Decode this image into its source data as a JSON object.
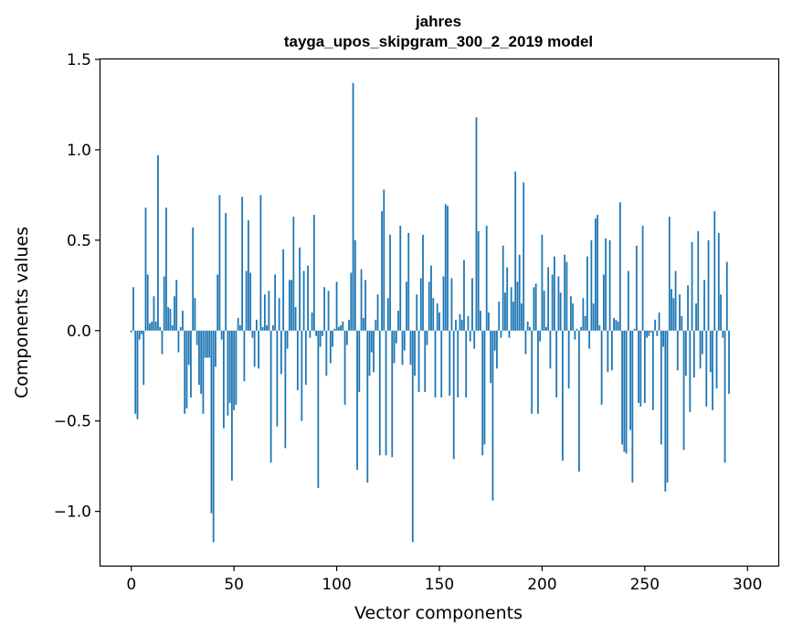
{
  "chart_data": {
    "type": "bar",
    "title": "jahres",
    "subtitle": "tayga_upos_skipgram_300_2_2019 model",
    "xlabel": "Vector components",
    "ylabel": "Components values",
    "xlim": [
      -15,
      315
    ],
    "ylim": [
      -1.3,
      1.5
    ],
    "xticks": [
      0,
      50,
      100,
      150,
      200,
      250,
      300
    ],
    "xtick_labels": [
      "0",
      "50",
      "100",
      "150",
      "200",
      "250",
      "300"
    ],
    "yticks": [
      -1.0,
      -0.5,
      0.0,
      0.5,
      1.0,
      1.5
    ],
    "ytick_labels": [
      "−1.0",
      "−0.5",
      "0.0",
      "0.5",
      "1.0",
      "1.5"
    ],
    "bar_color": "#1f77b4",
    "values": [
      -0.01,
      0.24,
      -0.46,
      -0.49,
      -0.05,
      -0.02,
      -0.3,
      0.68,
      0.31,
      0.04,
      0.05,
      0.19,
      0.05,
      0.97,
      0.02,
      -0.13,
      0.3,
      0.68,
      0.13,
      0.12,
      0.03,
      0.19,
      0.28,
      -0.12,
      0.02,
      0.11,
      -0.46,
      -0.43,
      -0.19,
      -0.37,
      0.57,
      0.18,
      -0.08,
      -0.3,
      -0.35,
      -0.46,
      -0.15,
      -0.15,
      -0.15,
      -1.01,
      -1.17,
      -0.2,
      0.31,
      0.75,
      -0.05,
      -0.54,
      0.65,
      -0.47,
      -0.4,
      -0.83,
      -0.44,
      -0.41,
      0.07,
      0.03,
      0.74,
      -0.28,
      0.33,
      0.61,
      0.32,
      -0.04,
      -0.2,
      0.06,
      -0.21,
      0.75,
      0.02,
      0.2,
      0.03,
      0.22,
      -0.73,
      0.03,
      0.31,
      -0.53,
      0.18,
      -0.24,
      0.45,
      -0.65,
      -0.1,
      0.28,
      0.28,
      0.63,
      0.13,
      -0.33,
      0.46,
      -0.5,
      0.33,
      -0.3,
      0.36,
      -0.04,
      0.1,
      0.64,
      -0.03,
      -0.87,
      -0.09,
      -0.03,
      0.24,
      -0.25,
      0.22,
      -0.18,
      -0.09,
      0.01,
      0.27,
      0.02,
      0.03,
      0.05,
      -0.41,
      -0.08,
      0.06,
      0.32,
      1.37,
      0.5,
      -0.77,
      -0.34,
      0.34,
      0.07,
      0.28,
      -0.84,
      -0.25,
      -0.12,
      -0.23,
      0.06,
      0.2,
      -0.69,
      0.66,
      0.78,
      -0.69,
      0.18,
      0.53,
      -0.7,
      -0.18,
      -0.07,
      0.11,
      0.58,
      -0.19,
      -0.11,
      0.27,
      0.54,
      -0.19,
      -1.17,
      -0.25,
      0.2,
      -0.34,
      0.29,
      0.53,
      -0.34,
      -0.08,
      0.27,
      0.36,
      0.18,
      -0.37,
      0.15,
      0.1,
      -0.37,
      0.3,
      0.7,
      0.69,
      -0.36,
      0.29,
      -0.71,
      0.06,
      -0.37,
      0.09,
      0.06,
      0.39,
      -0.37,
      0.08,
      -0.06,
      0.29,
      -0.1,
      1.18,
      0.55,
      0.11,
      -0.69,
      -0.63,
      0.58,
      0.1,
      -0.29,
      -0.94,
      -0.11,
      -0.21,
      0.16,
      -0.04,
      0.47,
      0.21,
      0.35,
      -0.04,
      0.24,
      0.16,
      0.88,
      0.27,
      0.42,
      0.15,
      0.82,
      -0.13,
      0.05,
      0.02,
      -0.46,
      0.24,
      0.26,
      -0.46,
      -0.06,
      0.53,
      0.22,
      0.02,
      0.35,
      -0.21,
      0.31,
      0.41,
      -0.37,
      0.3,
      0.21,
      -0.72,
      0.42,
      0.38,
      -0.32,
      0.19,
      0.15,
      -0.05,
      0.01,
      -0.78,
      0.02,
      0.18,
      0.08,
      0.41,
      -0.1,
      0.5,
      0.15,
      0.62,
      0.64,
      0.03,
      -0.41,
      0.31,
      0.51,
      -0.23,
      0.5,
      -0.22,
      0.07,
      0.06,
      0.05,
      0.71,
      -0.63,
      -0.67,
      -0.68,
      0.33,
      -0.55,
      -0.84,
      0.01,
      0.47,
      -0.4,
      -0.42,
      0.58,
      -0.4,
      -0.04,
      -0.03,
      -0.01,
      -0.44,
      0.06,
      -0.03,
      0.1,
      -0.63,
      -0.09,
      -0.89,
      -0.84,
      0.63,
      0.23,
      0.18,
      0.33,
      -0.22,
      0.2,
      0.08,
      -0.66,
      -0.25,
      0.25,
      -0.45,
      0.49,
      -0.26,
      0.15,
      0.55,
      -0.21,
      -0.13,
      0.28,
      -0.42,
      0.5,
      -0.23,
      -0.44,
      0.66,
      -0.32,
      0.54,
      0.2,
      -0.04,
      -0.73,
      0.38,
      -0.35
    ]
  }
}
